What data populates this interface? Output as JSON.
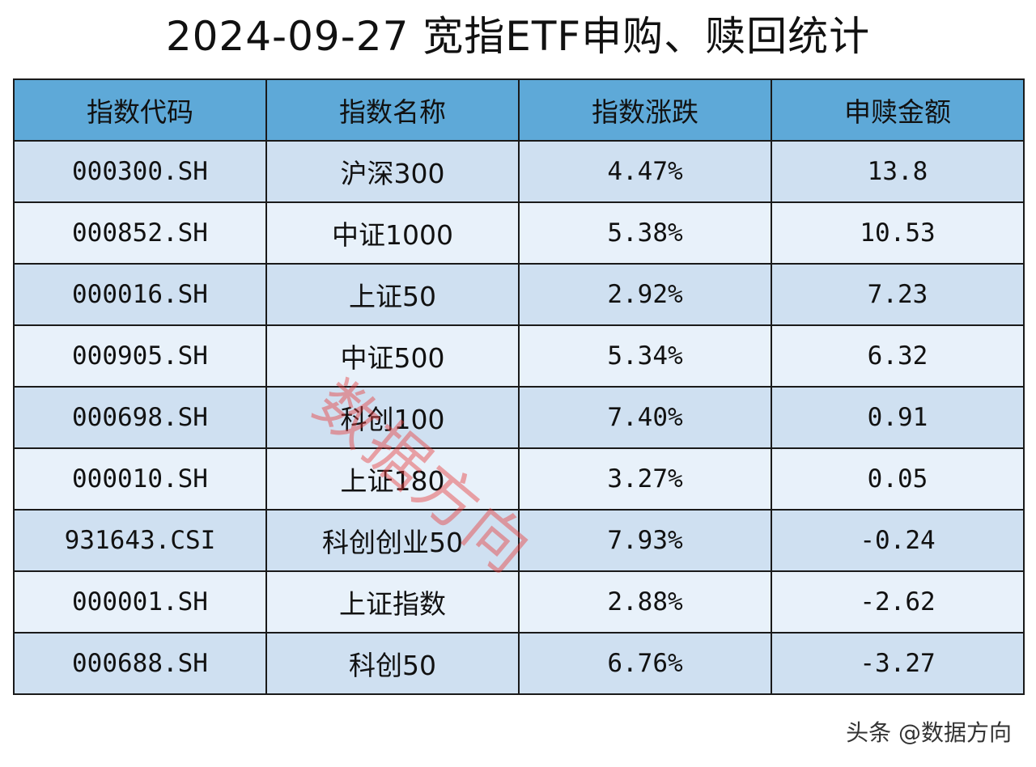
{
  "title": "2024-09-27 宽指ETF申购、赎回统计",
  "table": {
    "headers": [
      "指数代码",
      "指数名称",
      "指数涨跌",
      "申赎金额"
    ],
    "rows": [
      {
        "code": "000300.SH",
        "name": "沪深300",
        "change": "4.47%",
        "amount": "13.8"
      },
      {
        "code": "000852.SH",
        "name": "中证1000",
        "change": "5.38%",
        "amount": "10.53"
      },
      {
        "code": "000016.SH",
        "name": "上证50",
        "change": "2.92%",
        "amount": "7.23"
      },
      {
        "code": "000905.SH",
        "name": "中证500",
        "change": "5.34%",
        "amount": "6.32"
      },
      {
        "code": "000698.SH",
        "name": "科创100",
        "change": "7.40%",
        "amount": "0.91"
      },
      {
        "code": "000010.SH",
        "name": "上证180",
        "change": "3.27%",
        "amount": "0.05"
      },
      {
        "code": "931643.CSI",
        "name": "科创创业50",
        "change": "7.93%",
        "amount": "-0.24"
      },
      {
        "code": "000001.SH",
        "name": "上证指数",
        "change": "2.88%",
        "amount": "-2.62"
      },
      {
        "code": "000688.SH",
        "name": "科创50",
        "change": "6.76%",
        "amount": "-3.27"
      }
    ]
  },
  "watermark": "数据方向",
  "credit": "头条 @数据方向",
  "colors": {
    "header_bg": "#5ea9d8",
    "row_odd_bg": "#cfe0f1",
    "row_even_bg": "#e8f1fa",
    "watermark": "#e63c3c"
  }
}
